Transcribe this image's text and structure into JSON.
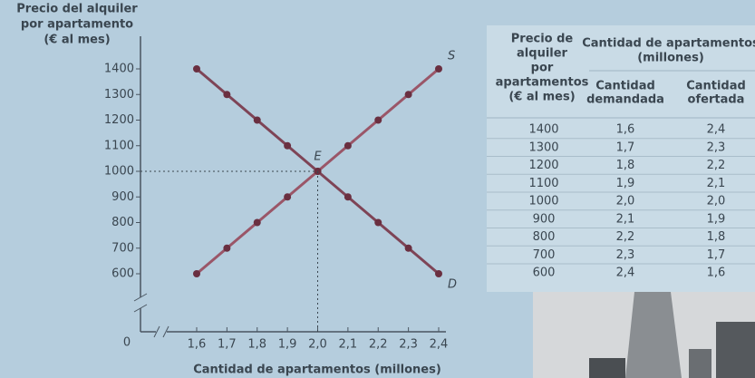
{
  "chart_data": {
    "type": "line",
    "ylabel": [
      "Precio del alquiler",
      "por apartamento",
      "(€ al mes)"
    ],
    "xlabel": "Cantidad de apartamentos (millones)",
    "origin_label": "0",
    "annotation": "E",
    "xlim": [
      1.6,
      2.4
    ],
    "ylim": [
      600,
      1400
    ],
    "xticks": [
      {
        "value": 1.6,
        "label": "1,6"
      },
      {
        "value": 1.7,
        "label": "1,7"
      },
      {
        "value": 1.8,
        "label": "1,8"
      },
      {
        "value": 1.9,
        "label": "1,9"
      },
      {
        "value": 2.0,
        "label": "2,0"
      },
      {
        "value": 2.1,
        "label": "2,1"
      },
      {
        "value": 2.2,
        "label": "2,2"
      },
      {
        "value": 2.3,
        "label": "2,3"
      },
      {
        "value": 2.4,
        "label": "2,4"
      }
    ],
    "yticks": [
      600,
      700,
      800,
      900,
      1000,
      1100,
      1200,
      1300,
      1400
    ],
    "series": [
      {
        "name": "S",
        "color": "#9a5668",
        "x": [
          1.6,
          1.7,
          1.8,
          1.9,
          2.0,
          2.1,
          2.2,
          2.3,
          2.4
        ],
        "values": [
          600,
          700,
          800,
          900,
          1000,
          1100,
          1200,
          1300,
          1400
        ]
      },
      {
        "name": "D",
        "color": "#7e4456",
        "x": [
          1.6,
          1.7,
          1.8,
          1.9,
          2.0,
          2.1,
          2.2,
          2.3,
          2.4
        ],
        "values": [
          1400,
          1300,
          1200,
          1100,
          1000,
          900,
          800,
          700,
          600
        ]
      }
    ]
  },
  "table": {
    "price_header": [
      "Precio de",
      "alquiler",
      "por",
      "apartamentos",
      "(€ al mes)"
    ],
    "group_header": [
      "Cantidad de apartamentos",
      "(millones)"
    ],
    "demand_header": [
      "Cantidad",
      "demandada"
    ],
    "supply_header": [
      "Cantidad",
      "ofertada"
    ],
    "rows": [
      [
        "1400",
        "1,6",
        "2,4"
      ],
      [
        "1300",
        "1,7",
        "2,3"
      ],
      [
        "1200",
        "1,8",
        "2,2"
      ],
      [
        "1100",
        "1,9",
        "2,1"
      ],
      [
        "1000",
        "2,0",
        "2,0"
      ],
      [
        "900",
        "2,1",
        "1,9"
      ],
      [
        "800",
        "2,2",
        "1,8"
      ],
      [
        "700",
        "2,3",
        "1,7"
      ],
      [
        "600",
        "2,4",
        "1,6"
      ]
    ]
  }
}
